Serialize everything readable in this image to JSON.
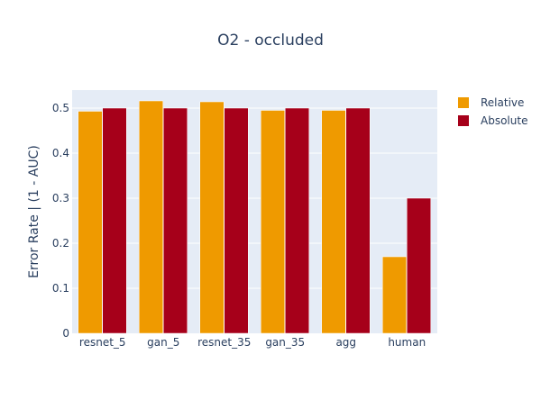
{
  "chart_data": {
    "type": "bar",
    "title": "O2 - occluded",
    "xlabel": "",
    "ylabel": "Error Rate | (1 - AUC)",
    "ylim": [
      0,
      0.54
    ],
    "yticks": [
      0,
      0.1,
      0.2,
      0.3,
      0.4,
      0.5
    ],
    "ytick_labels": [
      "0",
      "0.1",
      "0.2",
      "0.3",
      "0.4",
      "0.5"
    ],
    "categories": [
      "resnet_5",
      "gan_5",
      "resnet_35",
      "gan_35",
      "agg",
      "human"
    ],
    "series": [
      {
        "name": "Relative",
        "color": "#ef9a00",
        "values": [
          0.493,
          0.516,
          0.514,
          0.495,
          0.495,
          0.17
        ]
      },
      {
        "name": "Absolute",
        "color": "#a6001a",
        "values": [
          0.5,
          0.5,
          0.5,
          0.5,
          0.5,
          0.3
        ]
      }
    ],
    "grid": true,
    "legend_position": "top-right",
    "plot_background": "#e5ecf6"
  }
}
